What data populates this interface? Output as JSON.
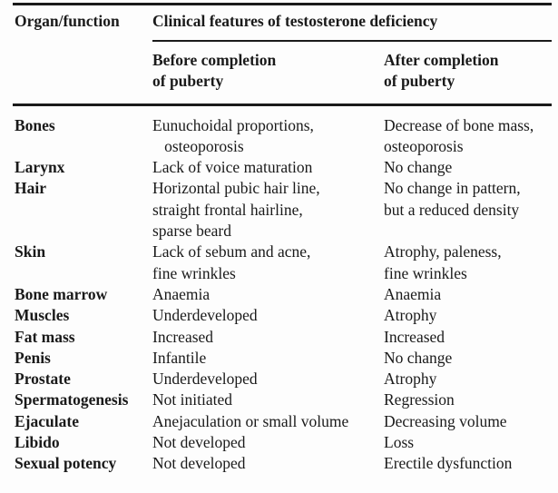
{
  "table": {
    "col1_header": "Organ/function",
    "span_header": "Clinical features of testosterone deficiency",
    "before_header": "Before completion\nof puberty",
    "after_header": "After completion\nof puberty",
    "rows": [
      {
        "organ": "Bones",
        "before": "Eunuchoidal proportions,\n   osteoporosis",
        "after": "Decrease of bone mass,\nosteoporosis"
      },
      {
        "organ": "Larynx",
        "before": "Lack of voice maturation",
        "after": "No change"
      },
      {
        "organ": "Hair",
        "before": "Horizontal pubic hair line,\nstraight frontal hairline,\nsparse beard",
        "after": "No change in pattern,\nbut a reduced density"
      },
      {
        "organ": "Skin",
        "before": "Lack of sebum and acne,\nfine wrinkles",
        "after": "Atrophy, paleness,\nfine wrinkles"
      },
      {
        "organ": "Bone marrow",
        "before": "Anaemia",
        "after": "Anaemia"
      },
      {
        "organ": "Muscles",
        "before": "Underdeveloped",
        "after": "Atrophy"
      },
      {
        "organ": "Fat mass",
        "before": "Increased",
        "after": "Increased"
      },
      {
        "organ": "Penis",
        "before": "Infantile",
        "after": "No change"
      },
      {
        "organ": "Prostate",
        "before": "Underdeveloped",
        "after": "Atrophy"
      },
      {
        "organ": "Spermatogenesis",
        "before": "Not initiated",
        "after": "Regression"
      },
      {
        "organ": "Ejaculate",
        "before": "Anejaculation or small volume",
        "after": "Decreasing volume"
      },
      {
        "organ": "Libido",
        "before": "Not developed",
        "after": "Loss"
      },
      {
        "organ": "Sexual potency",
        "before": "Not developed",
        "after": "Erectile dysfunction"
      }
    ]
  },
  "colors": {
    "text": "#1a1a1a",
    "rule": "#1a1a1a",
    "background": "#fdfdfd"
  }
}
